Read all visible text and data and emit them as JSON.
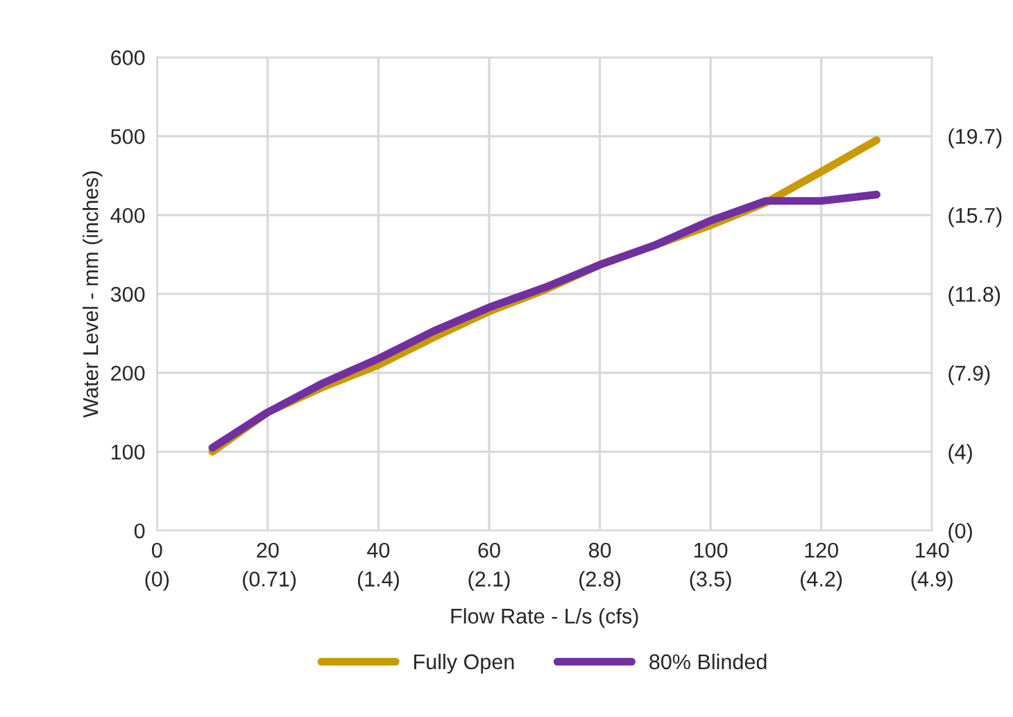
{
  "chart_data": {
    "type": "line",
    "xlabel": "Flow Rate - L/s (cfs)",
    "ylabel": "Water Level - mm (inches)",
    "x": [
      10,
      20,
      30,
      40,
      50,
      60,
      70,
      80,
      90,
      100,
      110,
      120,
      130
    ],
    "series": [
      {
        "name": "Fully Open",
        "color": "#c99a06",
        "values": [
          100,
          150,
          182,
          210,
          245,
          278,
          305,
          337,
          362,
          387,
          416,
          455,
          495
        ]
      },
      {
        "name": "80% Blinded",
        "color": "#7030a0",
        "values": [
          105,
          150,
          187,
          218,
          253,
          283,
          308,
          337,
          362,
          393,
          418,
          418,
          426
        ]
      }
    ],
    "xlim": [
      0,
      140
    ],
    "xticks": [
      0,
      20,
      40,
      60,
      80,
      100,
      120,
      140
    ],
    "x2lim": [
      0,
      4.9
    ],
    "x2ticks": [
      {
        "value": 0,
        "label": "(0)"
      },
      {
        "value": 0.71,
        "label": "(0.71)"
      },
      {
        "value": 1.4,
        "label": "(1.4)"
      },
      {
        "value": 2.1,
        "label": "(2.1)"
      },
      {
        "value": 2.8,
        "label": "(2.8)"
      },
      {
        "value": 3.5,
        "label": "(3.5)"
      },
      {
        "value": 4.2,
        "label": "(4.2)"
      },
      {
        "value": 4.9,
        "label": "(4.9)"
      }
    ],
    "ylim": [
      0,
      600
    ],
    "yticks": [
      0,
      100,
      200,
      300,
      400,
      500,
      600
    ],
    "y2lim": [
      0,
      23.62
    ],
    "y2ticks": [
      {
        "value": 0,
        "label": "(0)"
      },
      {
        "value": 3.94,
        "label": "(4)"
      },
      {
        "value": 7.87,
        "label": "(7.9)"
      },
      {
        "value": 11.81,
        "label": "(11.8)"
      },
      {
        "value": 15.75,
        "label": "(15.7)"
      },
      {
        "value": 19.69,
        "label": "(19.7)"
      }
    ],
    "grid": true,
    "legend": "bottom",
    "marker": "none",
    "line_style": "solid"
  }
}
